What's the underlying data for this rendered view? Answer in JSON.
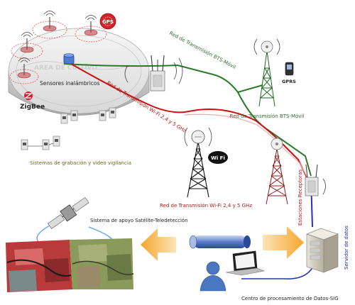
{
  "labels": {
    "area_cultivo": "AREA DE CULTIVO",
    "sensores": "Sensores inalámbricos",
    "zigbee": "ZigBee",
    "gps": "GPS",
    "gprs": "GPRS",
    "wifi": "Wi Fi",
    "red_bts_diag": "Red de Transmisión BTS-Móvil",
    "red_wifi_diag": "Red de Transmisión Wi-Fi 2,4 y 5 GHz",
    "red_bts": "Red de Transmisión BTS-Móvil",
    "camaras": "Sistemas de grabación y video vigilancia",
    "red_wifi": "Red de Transmisión Wi-Fi 2,4 y 5 GHz",
    "estaciones": "Estaciones Receptoras",
    "satelite": "Sistema de apoyo Satélite-Teledetección",
    "servidor": "Servidor de datos",
    "centro": "Centro de procesamiento de Datos-SIG"
  },
  "colors": {
    "green_link": "#2a7a2a",
    "red_link": "#cc1111",
    "blue_link": "#2233bb",
    "label_green": "#2c6e2c",
    "label_red": "#b51515",
    "label_blue": "#1a2aa8",
    "label_olive": "#6b6b1a",
    "arrow": "#f3b24a"
  }
}
